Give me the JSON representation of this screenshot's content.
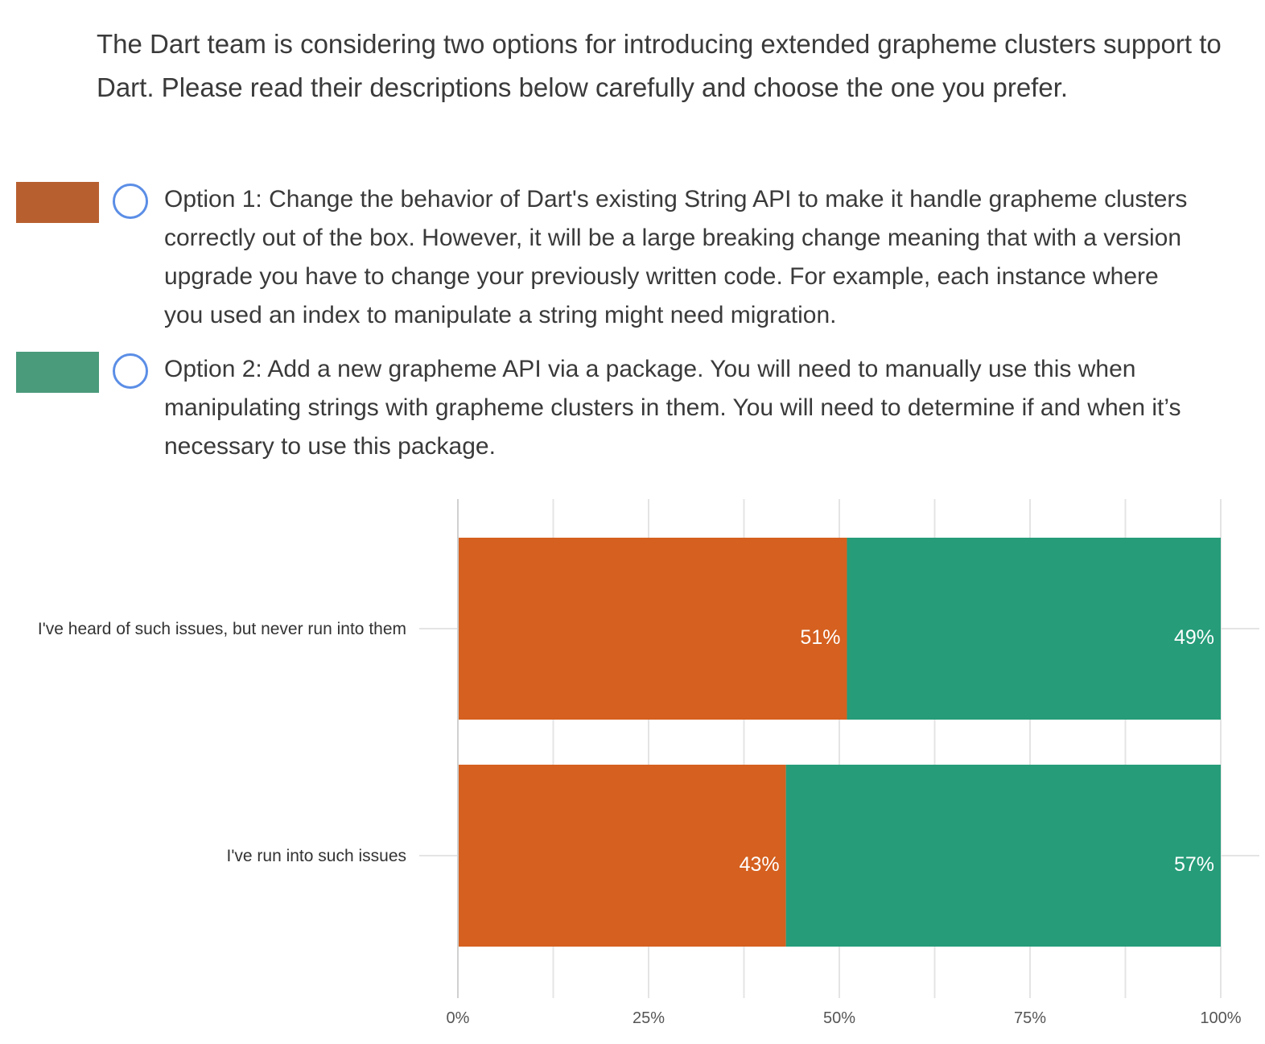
{
  "question": "The Dart team is considering two options for introducing extended grapheme clusters support to Dart. Please read their descriptions below carefully and choose the one you prefer.",
  "options": [
    {
      "text": "Option 1: Change the behavior of Dart's existing String API to make it handle grapheme clusters correctly out of the box. However, it will be a large breaking change meaning that with a version upgrade you have to change your previously written code. For example, each instance where you used an index to manipulate a string might need migration.",
      "swatch_color": "#b85f30"
    },
    {
      "text": "Option 2: Add a new grapheme API via a package. You will need to manually use this when manipulating strings with grapheme clusters in them. You will need to determine if and when it’s necessary to use this package.",
      "swatch_color": "#4a9a7c"
    }
  ],
  "chart_data": {
    "type": "bar",
    "orientation": "horizontal",
    "stacked": "percent",
    "categories": [
      "I've heard of such issues, but never run into them",
      "I've run into such issues"
    ],
    "series": [
      {
        "values": [
          51,
          43
        ],
        "labels": [
          "51%",
          "43%"
        ],
        "color": "#d5601f"
      },
      {
        "values": [
          49,
          57
        ],
        "labels": [
          "49%",
          "57%"
        ],
        "color": "#269c79"
      }
    ],
    "x_ticks": [
      "0%",
      "25%",
      "50%",
      "75%",
      "100%"
    ],
    "xlim": [
      0,
      100
    ],
    "grid": true,
    "legend": "above (option swatches)"
  }
}
